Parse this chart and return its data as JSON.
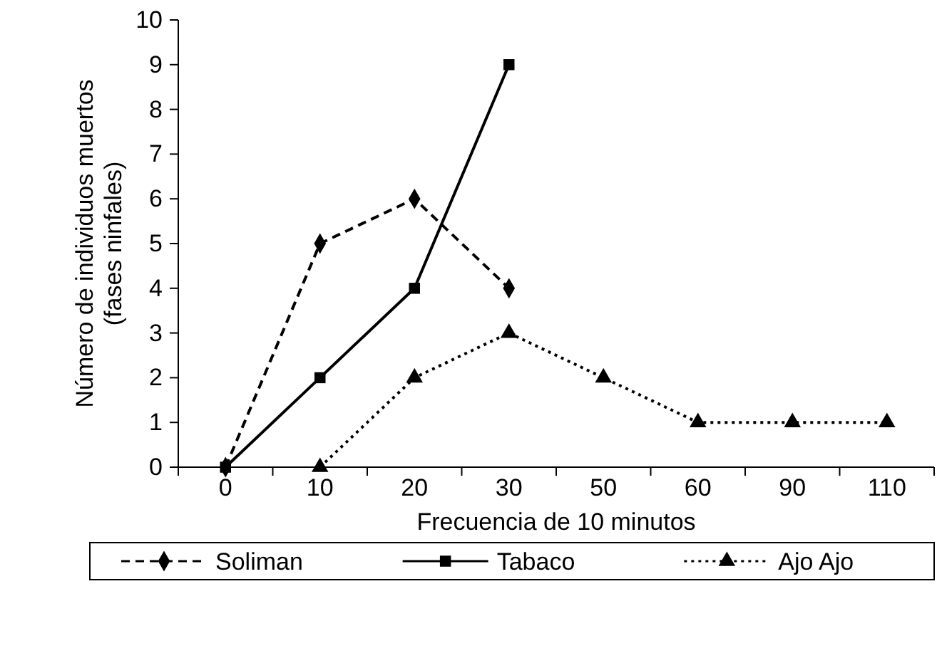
{
  "chart_data": {
    "type": "line",
    "xlabel": "Frecuencia de 10 minutos",
    "ylabel": "Número de individuos muertos\n(fases ninfales)",
    "categories": [
      "0",
      "10",
      "20",
      "30",
      "50",
      "60",
      "90",
      "110"
    ],
    "series": [
      {
        "name": "Soliman",
        "color": "#000000",
        "marker": "diamond",
        "line_style": "dashed",
        "values": [
          0,
          5,
          6,
          4,
          null,
          null,
          null,
          null
        ]
      },
      {
        "name": "Tabaco",
        "color": "#000000",
        "marker": "square",
        "line_style": "solid",
        "values": [
          0,
          2,
          4,
          9,
          null,
          null,
          null,
          null
        ]
      },
      {
        "name": "Ajo Ajo",
        "color": "#000000",
        "marker": "triangle",
        "line_style": "dotted",
        "values": [
          null,
          0,
          2,
          3,
          2,
          1,
          1,
          1
        ]
      }
    ],
    "ylim": [
      0,
      10
    ],
    "yticks": [
      0,
      1,
      2,
      3,
      4,
      5,
      6,
      7,
      8,
      9,
      10
    ],
    "grid": false,
    "legend": "bottom"
  }
}
